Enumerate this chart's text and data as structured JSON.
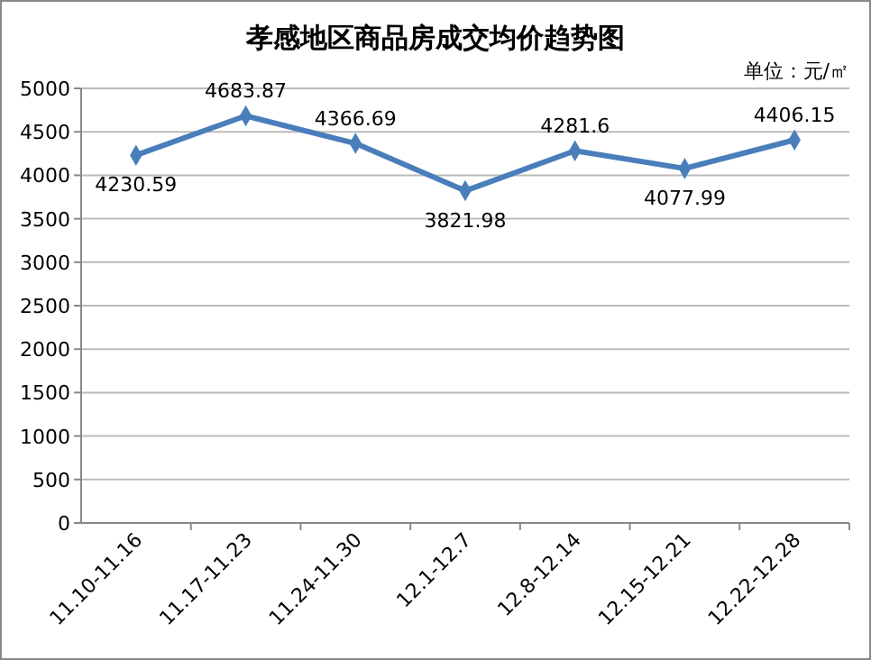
{
  "chart_data": {
    "type": "line",
    "title": "孝感地区商品房成交均价趋势图",
    "categories": [
      "11.10-11.16",
      "11.17-11.23",
      "11.24-11.30",
      "12.1-12.7",
      "12.8-12.14",
      "12.15-12.21",
      "12.22-12.28"
    ],
    "series": [
      {
        "color": "#4a7ebb",
        "values": [
          4230.59,
          4683.87,
          4366.69,
          3821.98,
          4281.6,
          4077.99,
          4406.15
        ]
      }
    ],
    "ylim": [
      0,
      5000
    ],
    "yticks": [
      0,
      500,
      1000,
      1500,
      2000,
      2500,
      3000,
      3500,
      4000,
      4500,
      5000
    ],
    "grid": "y",
    "marker": "diamond",
    "data_labels": true,
    "annotations": [
      "单位：元/㎡"
    ]
  }
}
